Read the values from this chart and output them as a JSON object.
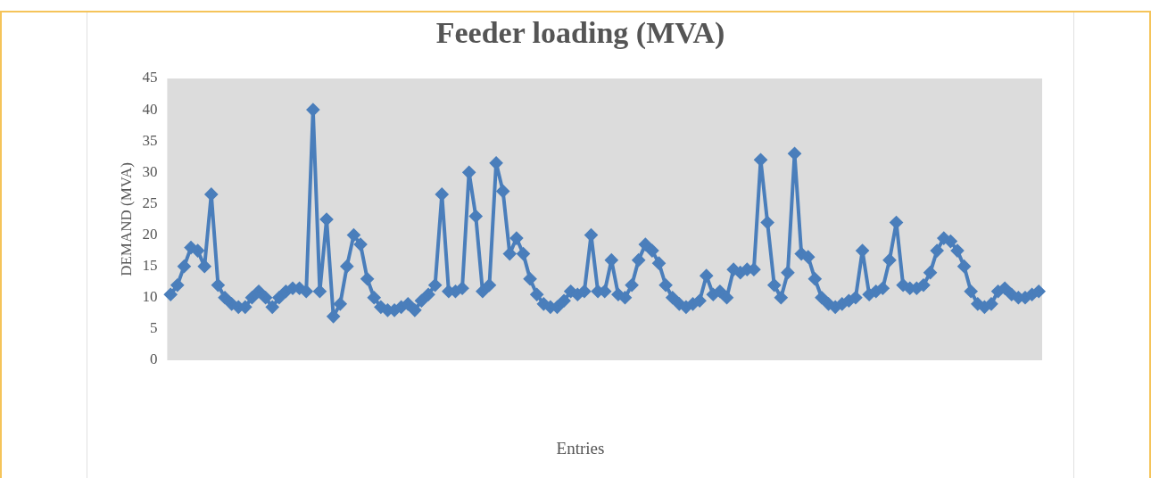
{
  "chart_data": {
    "type": "line",
    "title": "Feeder loading (MVA)",
    "xlabel": "Entries",
    "ylabel": "DEMAND (MVA)",
    "marker": "diamond",
    "grid": false,
    "legend": false,
    "ylim": [
      0,
      45
    ],
    "yticks": [
      0,
      5,
      10,
      15,
      20,
      25,
      30,
      35,
      40,
      45
    ],
    "categories": [
      null,
      null,
      null,
      null,
      null,
      null,
      null,
      null,
      null,
      null,
      null,
      null,
      null,
      null,
      null,
      null,
      null,
      null,
      null,
      null,
      null,
      null,
      null,
      null,
      null,
      null,
      null,
      null,
      null,
      null,
      null,
      null,
      null,
      null,
      null,
      null,
      null,
      null,
      null,
      null,
      null,
      null,
      null,
      null,
      null,
      null,
      null,
      null,
      null,
      null,
      null,
      null,
      null,
      null,
      null,
      null,
      null,
      null,
      null,
      null,
      null,
      null,
      null,
      null,
      null,
      null,
      null,
      null,
      null,
      null,
      null,
      null,
      null,
      null,
      null,
      null,
      null,
      null,
      null,
      null,
      null,
      null,
      null,
      null,
      null,
      null,
      null,
      null,
      null,
      null,
      null,
      null,
      null,
      null,
      null,
      null,
      null,
      null,
      null,
      null,
      null,
      null,
      null,
      null,
      null,
      null,
      null,
      null,
      null,
      null,
      null,
      null,
      null,
      null,
      null,
      null,
      null,
      null,
      null,
      null,
      null,
      null,
      null,
      null,
      null,
      null,
      null,
      null,
      null
    ],
    "series": [
      {
        "color": "#4a7ebb",
        "values": [
          10.5,
          12,
          15,
          18,
          17.5,
          15,
          26.5,
          12,
          10,
          9,
          8.5,
          8.5,
          10,
          11,
          10,
          8.5,
          10,
          11,
          11.5,
          11.5,
          11,
          40,
          11,
          22.5,
          7,
          9,
          15,
          20,
          18.5,
          13,
          10,
          8.5,
          8,
          8,
          8.5,
          9,
          8,
          9.5,
          10.5,
          12,
          26.5,
          11,
          11,
          11.5,
          30,
          23,
          11,
          12,
          31.5,
          27,
          17,
          19.5,
          17,
          13,
          10.5,
          9,
          8.5,
          8.5,
          9.5,
          11,
          10.5,
          11,
          20,
          11,
          11,
          16,
          10.5,
          10,
          12,
          16,
          18.5,
          17.5,
          15.5,
          12,
          10,
          9,
          8.5,
          9,
          9.5,
          13.5,
          10.5,
          11,
          10,
          14.5,
          14,
          14.5,
          14.5,
          32,
          22,
          12,
          10,
          14,
          33,
          17,
          16.5,
          13,
          10,
          9,
          8.5,
          9,
          9.5,
          10,
          17.5,
          10.5,
          11,
          11.5,
          16,
          22,
          12,
          11.5,
          11.5,
          12,
          14,
          17.5,
          19.5,
          19,
          17.5,
          15,
          11,
          9,
          8.5,
          9,
          11,
          11.5,
          10.5,
          10,
          10,
          10.5,
          11
        ]
      }
    ]
  }
}
